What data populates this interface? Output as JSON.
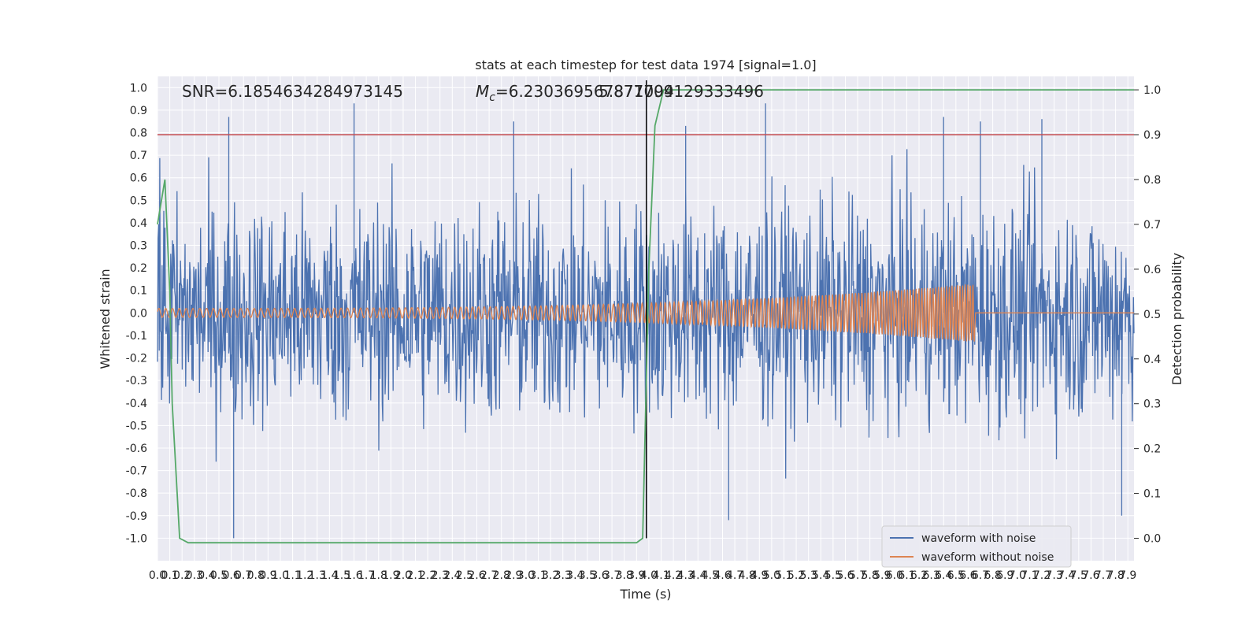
{
  "chart_data": {
    "type": "line",
    "title": "stats at each timestep for test data 1974 [signal=1.0]",
    "xlabel": "Time (s)",
    "ylabel": "Whitened strain",
    "y2label": "Detection probability",
    "xlim": [
      0.0,
      7.95
    ],
    "ylim": [
      -1.1,
      1.05
    ],
    "y2lim": [
      -0.05,
      1.03
    ],
    "x_ticks": [
      0.0,
      0.1,
      0.2,
      0.3,
      0.4,
      0.5,
      0.6,
      0.7,
      0.8,
      0.9,
      1.0,
      1.1,
      1.2,
      1.3,
      1.4,
      1.5,
      1.6,
      1.7,
      1.8,
      1.9,
      2.0,
      2.1,
      2.2,
      2.3,
      2.4,
      2.5,
      2.6,
      2.7,
      2.8,
      2.9,
      3.0,
      3.1,
      3.2,
      3.3,
      3.4,
      3.5,
      3.6,
      3.7,
      3.8,
      3.9,
      4.0,
      4.1,
      4.2,
      4.3,
      4.4,
      4.5,
      4.6,
      4.7,
      4.8,
      4.9,
      5.0,
      5.1,
      5.2,
      5.3,
      5.4,
      5.5,
      5.6,
      5.7,
      5.8,
      5.9,
      6.0,
      6.1,
      6.2,
      6.3,
      6.4,
      6.5,
      6.6,
      6.7,
      6.8,
      6.9,
      7.0,
      7.1,
      7.2,
      7.3,
      7.4,
      7.5,
      7.6,
      7.7,
      7.8,
      7.9
    ],
    "y_ticks": [
      -1.0,
      -0.9,
      -0.8,
      -0.7,
      -0.6,
      -0.5,
      -0.4,
      -0.3,
      -0.2,
      -0.1,
      0.0,
      0.1,
      0.2,
      0.3,
      0.4,
      0.5,
      0.6,
      0.7,
      0.8,
      0.9,
      1.0
    ],
    "y2_ticks": [
      0.0,
      0.1,
      0.2,
      0.3,
      0.4,
      0.5,
      0.6,
      0.7,
      0.8,
      0.9,
      1.0
    ],
    "threshold": 0.9,
    "merger_time": 3.98,
    "annotations": {
      "snr": "SNR=6.1854634284973145",
      "mc_prefix": "M",
      "mc_sub": "c",
      "mc_value": "=6.230369567871094",
      "mc_overlap": "5.877709129333496"
    },
    "series": [
      {
        "name": "waveform with noise",
        "color": "#4c72b0",
        "noise_amp": 0.45,
        "spikes": [
          [
            0.58,
            0.87
          ],
          [
            0.62,
            -1.0
          ],
          [
            1.6,
            0.93
          ],
          [
            2.9,
            0.85
          ],
          [
            4.3,
            0.83
          ],
          [
            4.65,
            -0.92
          ],
          [
            4.95,
            0.93
          ],
          [
            6.4,
            0.87
          ],
          [
            6.7,
            0.85
          ],
          [
            7.2,
            0.86
          ],
          [
            7.85,
            -0.9
          ]
        ]
      },
      {
        "name": "waveform without noise",
        "color": "#dd8452",
        "chirp_start": 0.0,
        "chirp_end": 6.65,
        "amp_start": 0.02,
        "amp_end": 0.13
      },
      {
        "name": "detection probability",
        "color": "#55a868",
        "points": [
          [
            0.0,
            0.7
          ],
          [
            0.03,
            0.75
          ],
          [
            0.06,
            0.8
          ],
          [
            0.1,
            0.55
          ],
          [
            0.12,
            0.3
          ],
          [
            0.15,
            0.15
          ],
          [
            0.18,
            0.0
          ],
          [
            0.25,
            -0.01
          ],
          [
            3.9,
            -0.01
          ],
          [
            3.95,
            0.0
          ],
          [
            4.0,
            0.6
          ],
          [
            4.05,
            0.92
          ],
          [
            4.12,
            1.0
          ],
          [
            7.95,
            1.0
          ]
        ]
      }
    ],
    "legend": {
      "placement": "lower-right",
      "entries": [
        "waveform with noise",
        "waveform without noise"
      ]
    },
    "colors": {
      "threshold": "#c44e52",
      "merger": "#000000",
      "background": "#eaeaf2",
      "grid": "#ffffff"
    },
    "grid": true
  }
}
